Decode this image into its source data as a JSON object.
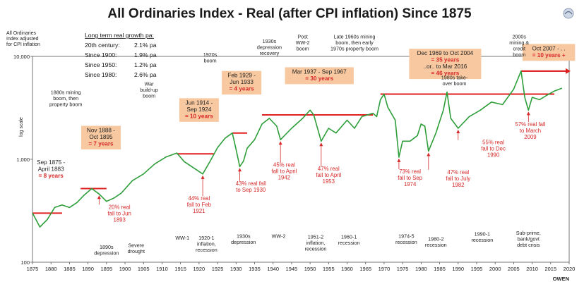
{
  "chart_data": {
    "type": "line",
    "title": "All Ordinaries Index - Real (after CPI inflation) Since 1875",
    "ylabel_text": [
      "All Ordinaries",
      "Index adjusted",
      "for CPI inflation"
    ],
    "log_scale_label": "log scale",
    "yscale": "log",
    "ylim": [
      100,
      10000
    ],
    "xlim": [
      1875,
      2020
    ],
    "x_ticks": [
      1875,
      1880,
      1885,
      1890,
      1895,
      1900,
      1905,
      1910,
      1915,
      1920,
      1925,
      1930,
      1935,
      1940,
      1945,
      1950,
      1955,
      1960,
      1965,
      1970,
      1975,
      1980,
      1985,
      1990,
      1995,
      2000,
      2005,
      2010,
      2015,
      2020
    ],
    "y_ticks": [
      {
        "value": 100,
        "label": "100"
      },
      {
        "value": 1000,
        "label": "1,000"
      },
      {
        "value": 10000,
        "label": "10,000"
      }
    ],
    "series": [
      {
        "color": "#2e9e3a",
        "x": [
          1875,
          1877,
          1879,
          1881,
          1883,
          1885,
          1887,
          1889,
          1891,
          1893,
          1895,
          1897,
          1899,
          1902,
          1905,
          1908,
          1911,
          1914,
          1916,
          1918,
          1921,
          1923,
          1925,
          1927,
          1929,
          1930,
          1931,
          1932,
          1933,
          1935,
          1937,
          1939,
          1941,
          1942,
          1945,
          1948,
          1950,
          1951,
          1953,
          1955,
          1957,
          1960,
          1962,
          1964,
          1967,
          1968,
          1969,
          1970,
          1971,
          1973,
          1974,
          1975,
          1977,
          1979,
          1980,
          1981,
          1982,
          1984,
          1986,
          1987,
          1988,
          1990,
          1993,
          1996,
          1999,
          2002,
          2005,
          2007,
          2008,
          2009,
          2010,
          2012,
          2014,
          2016,
          2018
        ],
        "y": [
          300,
          220,
          260,
          340,
          360,
          340,
          380,
          450,
          520,
          460,
          390,
          420,
          470,
          620,
          720,
          900,
          1050,
          1150,
          950,
          850,
          720,
          960,
          1300,
          1600,
          1800,
          1250,
          850,
          960,
          1280,
          1550,
          2200,
          2500,
          2100,
          1550,
          2000,
          2500,
          3000,
          2700,
          1500,
          2000,
          1800,
          2400,
          2000,
          2600,
          2800,
          2600,
          3800,
          4300,
          3200,
          2400,
          1050,
          1500,
          1500,
          1700,
          2200,
          2100,
          1200,
          1800,
          3000,
          4500,
          2500,
          2000,
          2600,
          3000,
          3600,
          3400,
          4800,
          7200,
          4000,
          3000,
          4000,
          3800,
          4200,
          4600,
          4900
        ]
      }
    ],
    "growth_table": {
      "heading": "Long term real growth pa:",
      "rows": [
        {
          "period": "20th century:",
          "value": "2.1% pa"
        },
        {
          "period": "Since 1900:",
          "value": "1.9% pa"
        },
        {
          "period": "Since 1950:",
          "value": "1.2% pa"
        },
        {
          "period": "Since 1980:",
          "value": "2.6% pa"
        }
      ]
    },
    "flat_periods": [
      {
        "x0": 1875,
        "x1": 1883,
        "y": 300,
        "lines": [
          "Sep 1875 -",
          "April 1883",
          "= 8 years"
        ],
        "boxed": false,
        "lx": 1880,
        "ly": 1000
      },
      {
        "x0": 1888,
        "x1": 1895,
        "y": 520,
        "lines": [
          "Nov 1888 -",
          "Oct 1895",
          "= 7 years"
        ],
        "boxed": true,
        "lx": 1893.5,
        "ly": 2050
      },
      {
        "x0": 1914,
        "x1": 1924,
        "y": 1130,
        "lines": [
          "Jun 1914 -",
          "Sep 1924",
          "= 10 years"
        ],
        "boxed": true,
        "lx": 1920,
        "ly": 3800
      },
      {
        "x0": 1929,
        "x1": 1933,
        "y": 1800,
        "lines": [
          "Feb 1929 -",
          "Jun 1933",
          "= 4 years"
        ],
        "boxed": true,
        "lx": 1931.5,
        "ly": 7000
      },
      {
        "x0": 1937,
        "x1": 1967,
        "y": 2700,
        "lines": [
          "Mar 1937 - Sep 1967",
          "= 30 years"
        ],
        "boxed": true,
        "lx": 1952.5,
        "ly": 7600
      },
      {
        "x0": 1969,
        "x1": 2016,
        "y": 4300,
        "lines": [
          "Dec 1969 to Oct 2004",
          "= 35 years",
          "..or.. to Mar 2016",
          "= 46 years"
        ],
        "boxed": true,
        "lx": 1986.5,
        "ly": 11500
      },
      {
        "x0": 2007,
        "x1": 2019,
        "y": 7200,
        "lines": [
          "Oct 2007 - . .",
          "= 10 years +"
        ],
        "boxed": true,
        "lx": 2014.5,
        "ly": 12800
      }
    ],
    "falls": [
      {
        "lines": [
          "20% real",
          "fall to Jun",
          "1893"
        ],
        "x": 1898.5,
        "y": 330,
        "ax": 1893,
        "ay": 460
      },
      {
        "lines": [
          "44% real",
          "fall to Feb",
          "1921"
        ],
        "x": 1920,
        "y": 400,
        "ax": 1921,
        "ay": 720
      },
      {
        "lines": [
          "43% real fall",
          "to Sep 1930"
        ],
        "x": 1934,
        "y": 560,
        "ax": 1931,
        "ay": 850
      },
      {
        "lines": [
          "45% real",
          "fall to April",
          "1942"
        ],
        "x": 1943,
        "y": 850,
        "ax": 1942,
        "ay": 1550
      },
      {
        "lines": [
          "47% real",
          "fall to April",
          "1953"
        ],
        "x": 1955,
        "y": 780,
        "ax": 1953,
        "ay": 1500
      },
      {
        "lines": [
          "73% real",
          "fall to Sep",
          "1974"
        ],
        "x": 1977,
        "y": 730,
        "ax": 1974,
        "ay": 1050
      },
      {
        "lines": [
          "47% real",
          "fall to July",
          "1982"
        ],
        "x": 1990,
        "y": 720,
        "ax": 1982,
        "ay": 1200
      },
      {
        "lines": [
          "55% real",
          "fall to Dec",
          "1990"
        ],
        "x": 1999.5,
        "y": 1400,
        "ax": 1990,
        "ay": 2000
      },
      {
        "lines": [
          "57% real fall",
          "to March",
          "2009"
        ],
        "x": 2009.5,
        "y": 2100,
        "ax": 2009,
        "ay": 3000
      }
    ],
    "booms": [
      {
        "lines": [
          "1880s mining",
          "boom, then",
          "property boom"
        ],
        "x": 1884,
        "y": 4300
      },
      {
        "lines": [
          "War",
          "build-up",
          "boom"
        ],
        "x": 1906.5,
        "y": 5200
      },
      {
        "lines": [
          "1920s",
          "boom"
        ],
        "x": 1923,
        "y": 10000
      },
      {
        "lines": [
          "1930s",
          "depression",
          "recovery"
        ],
        "x": 1939,
        "y": 13500
      },
      {
        "lines": [
          "Post",
          "WW-2",
          "boom"
        ],
        "x": 1948,
        "y": 15000
      },
      {
        "lines": [
          "Late 1960s mining",
          "boom, then early",
          "1970s property boom"
        ],
        "x": 1962,
        "y": 15000
      },
      {
        "lines": [
          "1980s take-",
          "over boom"
        ],
        "x": 1989,
        "y": 6000
      },
      {
        "lines": [
          "2000s",
          "mining &",
          "credit",
          "boom"
        ],
        "x": 2006.5,
        "y": 15000
      }
    ],
    "recessions": [
      {
        "lines": [
          "1890s",
          "depression"
        ],
        "x": 1895,
        "y": 135
      },
      {
        "lines": [
          "Severe",
          "drought"
        ],
        "x": 1903,
        "y": 140
      },
      {
        "lines": [
          "WW-1"
        ],
        "x": 1915.5,
        "y": 165
      },
      {
        "lines": [
          "1920-1",
          "inflation,",
          "recession"
        ],
        "x": 1922,
        "y": 165
      },
      {
        "lines": [
          "1930s",
          "depression"
        ],
        "x": 1932,
        "y": 172
      },
      {
        "lines": [
          "WW-2"
        ],
        "x": 1941.5,
        "y": 172
      },
      {
        "lines": [
          "1951-2",
          "inflation,",
          "recession"
        ],
        "x": 1951.5,
        "y": 170
      },
      {
        "lines": [
          "1960-1",
          "recession"
        ],
        "x": 1960.5,
        "y": 170
      },
      {
        "lines": [
          "1974-5",
          "recession"
        ],
        "x": 1976,
        "y": 172
      },
      {
        "lines": [
          "1980-2",
          "recession"
        ],
        "x": 1984,
        "y": 162
      },
      {
        "lines": [
          "1990-1",
          "recession"
        ],
        "x": 1996.5,
        "y": 180
      },
      {
        "lines": [
          "Sub-prime,",
          "bank/govt",
          "debt crisis"
        ],
        "x": 2009,
        "y": 185
      }
    ],
    "credit": "OWEN"
  }
}
